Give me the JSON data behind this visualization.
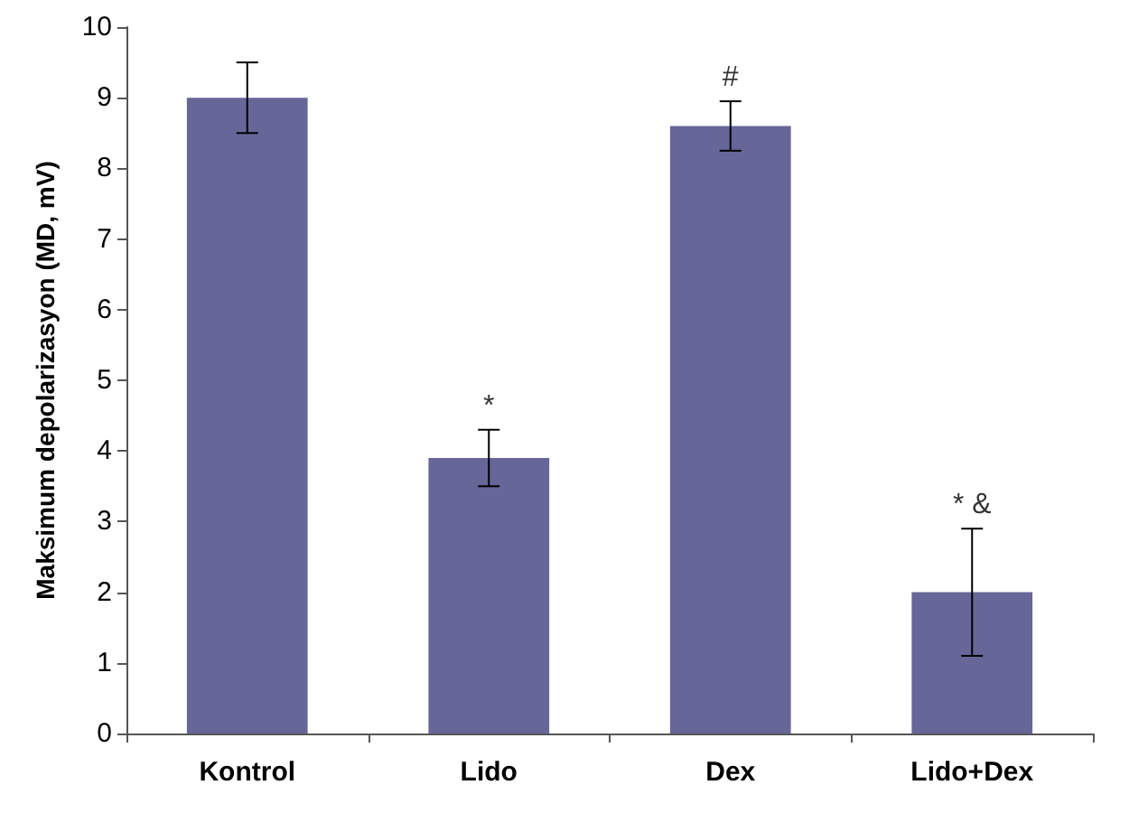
{
  "chart_data": {
    "type": "bar",
    "ylabel": "Maksimum depolarizasyon (MD, mV)",
    "categories": [
      "Kontrol",
      "Lido",
      "Dex",
      "Lido+Dex"
    ],
    "values": [
      9.0,
      3.9,
      8.6,
      2.0
    ],
    "errors": [
      0.5,
      0.4,
      0.35,
      0.9
    ],
    "color": "#666699",
    "ylim": [
      0,
      10
    ],
    "yticks": [
      0,
      1,
      2,
      3,
      4,
      5,
      6,
      7,
      8,
      9,
      10
    ],
    "grid": false,
    "annotations": [
      {
        "text": "*",
        "x": "Lido",
        "y": 4.3
      },
      {
        "text": "#",
        "x": "Dex",
        "y": 8.95
      },
      {
        "text": "* &",
        "x": "Lido+Dex",
        "y": 2.9
      }
    ]
  }
}
